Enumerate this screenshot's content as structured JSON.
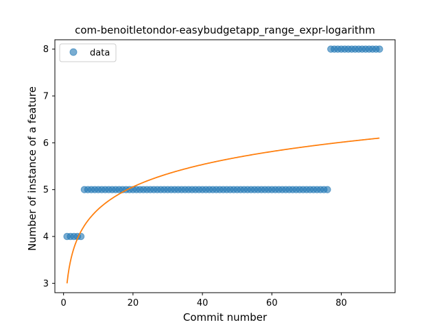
{
  "chart_data": {
    "type": "scatter",
    "title": "com-benoitletondor-easybudgetapp_range_expr-logarithm",
    "xlabel": "Commit number",
    "ylabel": "Number of instance of a feature",
    "xlim": [
      -2.5,
      95.5
    ],
    "ylim": [
      2.8,
      8.2
    ],
    "xticks": [
      0,
      20,
      40,
      60,
      80
    ],
    "yticks": [
      3,
      4,
      5,
      6,
      7,
      8
    ],
    "legend": {
      "position": "top-left",
      "entries": [
        "data"
      ]
    },
    "grid": false,
    "series": [
      {
        "name": "data",
        "kind": "scatter",
        "color": "#1f77b4",
        "segments": [
          {
            "x_start": 1,
            "x_end": 5,
            "y": 4
          },
          {
            "x_start": 6,
            "x_end": 76,
            "y": 5
          },
          {
            "x_start": 77,
            "x_end": 91,
            "y": 8
          }
        ]
      },
      {
        "kind": "line",
        "color": "#ff7f0e",
        "fit": {
          "form": "a + b*ln(x)",
          "a": 3.0,
          "b": 0.6872
        },
        "x_range": [
          1,
          91
        ]
      }
    ]
  }
}
